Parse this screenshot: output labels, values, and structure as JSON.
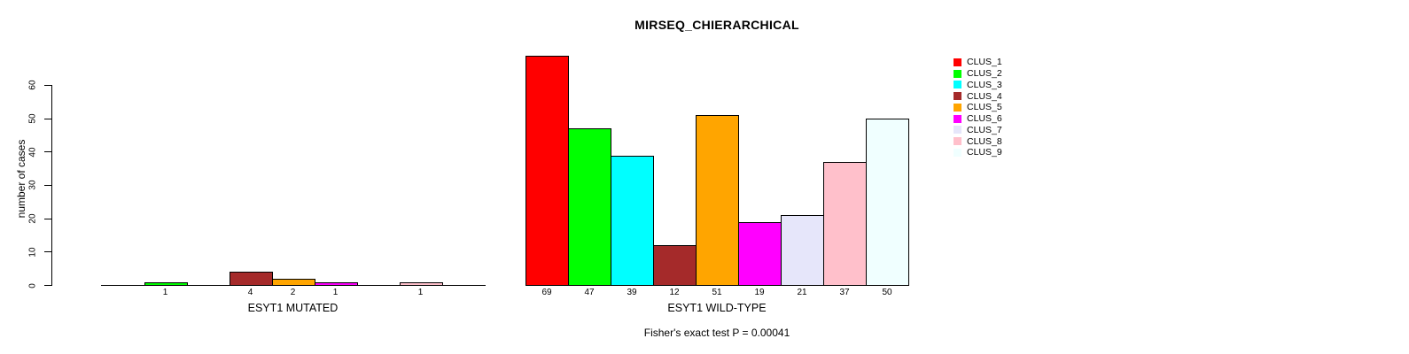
{
  "chart_data": {
    "type": "bar",
    "title": "MIRSEQ_CHIERARCHICAL",
    "ylabel": "number of cases",
    "yticks": [
      0,
      10,
      20,
      30,
      40,
      50,
      60
    ],
    "ylim": [
      0,
      69
    ],
    "grid": false,
    "legend_position": "top-right",
    "clusters": [
      {
        "label": "CLUS_1",
        "color": "#FF0000"
      },
      {
        "label": "CLUS_2",
        "color": "#00FF00"
      },
      {
        "label": "CLUS_3",
        "color": "#00FFFF"
      },
      {
        "label": "CLUS_4",
        "color": "#A52A2A"
      },
      {
        "label": "CLUS_5",
        "color": "#FFA500"
      },
      {
        "label": "CLUS_6",
        "color": "#FF00FF"
      },
      {
        "label": "CLUS_7",
        "color": "#E6E6FA"
      },
      {
        "label": "CLUS_8",
        "color": "#FFC0CB"
      },
      {
        "label": "CLUS_9",
        "color": "#F0FFFF"
      }
    ],
    "panels": [
      {
        "xlabel": "ESYT1 MUTATED",
        "values": [
          0,
          1,
          0,
          4,
          2,
          1,
          0,
          1,
          0
        ],
        "bar_labels": [
          "",
          "1",
          "",
          "4",
          "2",
          "1",
          "",
          "1",
          ""
        ]
      },
      {
        "xlabel": "ESYT1 WILD-TYPE",
        "values": [
          69,
          47,
          39,
          12,
          51,
          19,
          21,
          37,
          50
        ],
        "bar_labels": [
          "69",
          "47",
          "39",
          "12",
          "51",
          "19",
          "21",
          "37",
          "50"
        ]
      }
    ],
    "annotation": "Fisher's exact test P = 0.00041"
  }
}
